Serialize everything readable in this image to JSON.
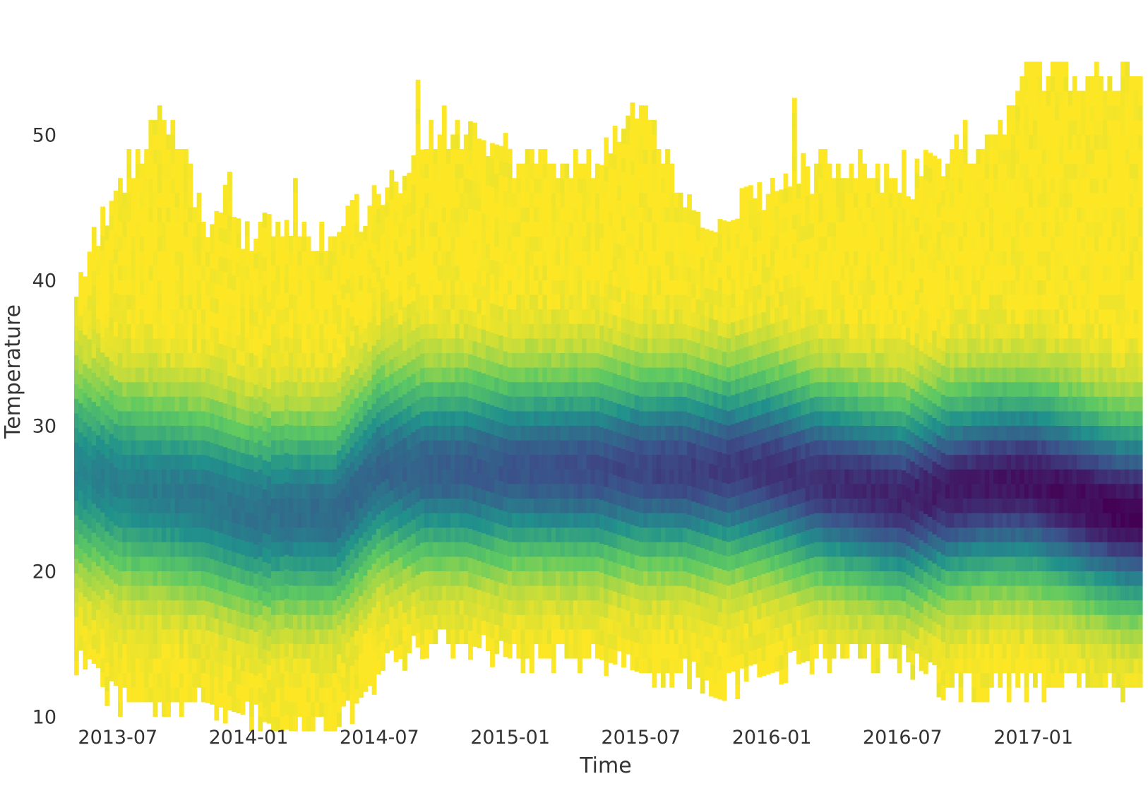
{
  "chart_data": {
    "type": "heatmap",
    "title": "",
    "xlabel": "Time",
    "ylabel": "Temperature",
    "x_tick_labels": [
      "2013-07",
      "2014-01",
      "2014-07",
      "2015-01",
      "2015-07",
      "2016-01",
      "2016-07",
      "2017-01"
    ],
    "y_tick_labels": [
      "10",
      "20",
      "30",
      "40",
      "50"
    ],
    "x_range": [
      "2013-05",
      "2017-06"
    ],
    "ylim": [
      9,
      55
    ],
    "grid": false,
    "legend": "none",
    "colormap": [
      "#440154",
      "#3b528b",
      "#21918c",
      "#5ec962",
      "#fde725"
    ],
    "background": "#ffffff",
    "temperature_range_envelope": [
      {
        "month": "2013-05",
        "min": 14,
        "max": 39
      },
      {
        "month": "2013-07",
        "min": 11,
        "max": 46
      },
      {
        "month": "2013-09",
        "min": 11,
        "max": 51
      },
      {
        "month": "2013-11",
        "min": 11,
        "max": 44
      },
      {
        "month": "2014-01",
        "min": 10,
        "max": 43
      },
      {
        "month": "2014-03",
        "min": 9,
        "max": 43
      },
      {
        "month": "2014-05",
        "min": 9,
        "max": 43
      },
      {
        "month": "2014-07",
        "min": 13,
        "max": 45
      },
      {
        "month": "2014-09",
        "min": 15,
        "max": 49
      },
      {
        "month": "2014-11",
        "min": 15,
        "max": 50
      },
      {
        "month": "2015-01",
        "min": 14,
        "max": 48
      },
      {
        "month": "2015-03",
        "min": 14,
        "max": 47
      },
      {
        "month": "2015-05",
        "min": 14,
        "max": 48
      },
      {
        "month": "2015-07",
        "min": 13,
        "max": 51
      },
      {
        "month": "2015-09",
        "min": 13,
        "max": 45
      },
      {
        "month": "2015-11",
        "min": 12,
        "max": 44
      },
      {
        "month": "2016-01",
        "min": 13,
        "max": 46
      },
      {
        "month": "2016-03",
        "min": 14,
        "max": 47
      },
      {
        "month": "2016-05",
        "min": 14,
        "max": 48
      },
      {
        "month": "2016-07",
        "min": 14,
        "max": 46
      },
      {
        "month": "2016-09",
        "min": 12,
        "max": 48
      },
      {
        "month": "2016-11",
        "min": 12,
        "max": 49
      },
      {
        "month": "2017-01",
        "min": 12,
        "max": 54
      },
      {
        "month": "2017-03",
        "min": 12,
        "max": 54
      },
      {
        "month": "2017-05",
        "min": 12,
        "max": 54
      }
    ],
    "peak_density_temperature": [
      {
        "month": "2013-05",
        "temperature": 27
      },
      {
        "month": "2013-07",
        "temperature": 26
      },
      {
        "month": "2013-11",
        "temperature": 25
      },
      {
        "month": "2014-01",
        "temperature": 24
      },
      {
        "month": "2014-05",
        "temperature": 24
      },
      {
        "month": "2014-07",
        "temperature": 27
      },
      {
        "month": "2015-01",
        "temperature": 27
      },
      {
        "month": "2015-07",
        "temperature": 27
      },
      {
        "month": "2016-01",
        "temperature": 27
      },
      {
        "month": "2016-07",
        "temperature": 25
      },
      {
        "month": "2016-11",
        "temperature": 26
      },
      {
        "month": "2017-01",
        "temperature": 26
      },
      {
        "month": "2017-05",
        "temperature": 24
      }
    ]
  }
}
